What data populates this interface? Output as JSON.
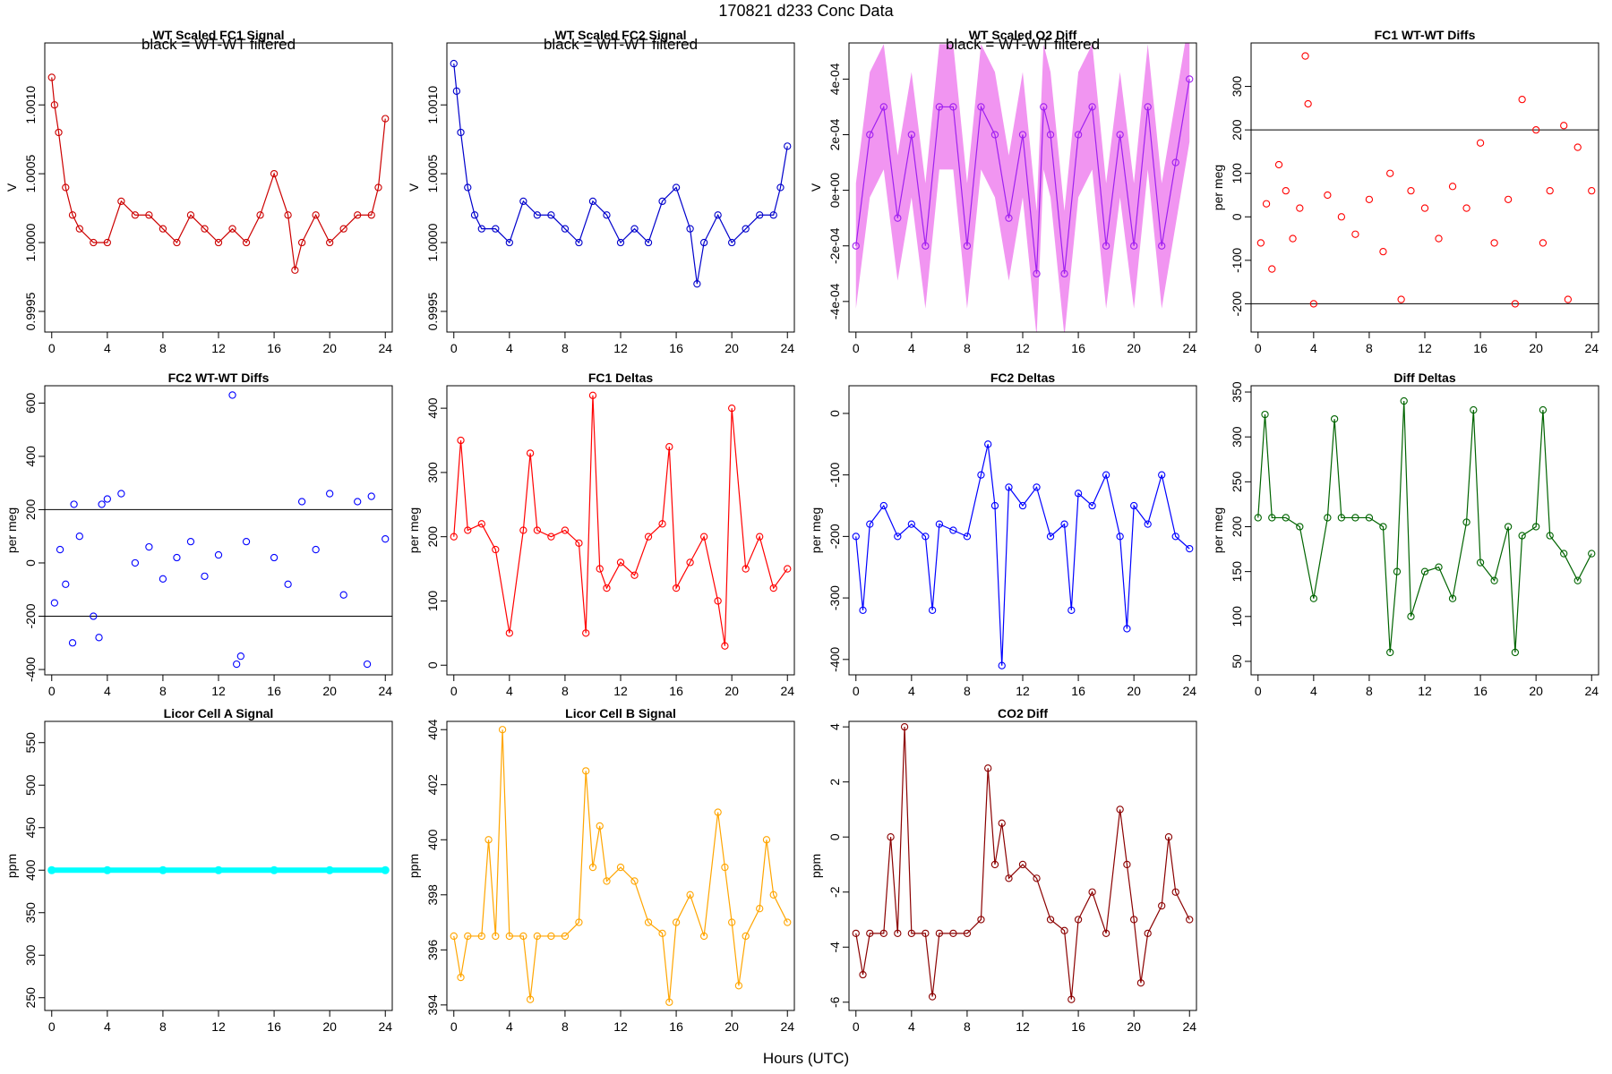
{
  "figure": {
    "title": "170821   d233   Conc Data",
    "xlabel": "Hours (UTC)"
  },
  "chart_data": [
    {
      "id": "fc1_signal",
      "type": "line",
      "title": "WT Scaled FC1 Signal",
      "note": "black = WT-WT filtered",
      "ylabel": "V",
      "xlim": [
        -0.5,
        24.5
      ],
      "ylim": [
        0.99935,
        1.00145
      ],
      "xticks": [
        0,
        4,
        8,
        12,
        16,
        20,
        24
      ],
      "yticks": [
        0.9995,
        1.0,
        1.0005,
        1.001
      ],
      "ytick_labels": [
        "0.9995",
        "1.0000",
        "1.0005",
        "1.0010"
      ],
      "color": "#cc0000",
      "marker": "circle",
      "series": [
        {
          "x": [
            0,
            0.2,
            0.5,
            1,
            1.5,
            2,
            3,
            4,
            5,
            6,
            7,
            8,
            9,
            10,
            11,
            12,
            13,
            14,
            15,
            16,
            17,
            17.5,
            18,
            19,
            20,
            21,
            22,
            23,
            23.5,
            24
          ],
          "y": [
            1.0012,
            1.001,
            1.0008,
            1.0004,
            1.0002,
            1.0001,
            1.0,
            1.0,
            1.0003,
            1.0002,
            1.0002,
            1.0001,
            1.0,
            1.0002,
            1.0001,
            1.0,
            1.0001,
            1.0,
            1.0002,
            1.0005,
            1.0002,
            0.9998,
            1.0,
            1.0002,
            1.0,
            1.0001,
            1.0002,
            1.0002,
            1.0004,
            1.0009
          ]
        }
      ]
    },
    {
      "id": "fc2_signal",
      "type": "line",
      "title": "WT Scaled FC2 Signal",
      "note": "black = WT-WT filtered",
      "ylabel": "V",
      "xlim": [
        -0.5,
        24.5
      ],
      "ylim": [
        0.99935,
        1.00145
      ],
      "xticks": [
        0,
        4,
        8,
        12,
        16,
        20,
        24
      ],
      "yticks": [
        0.9995,
        1.0,
        1.0005,
        1.001
      ],
      "ytick_labels": [
        "0.9995",
        "1.0000",
        "1.0005",
        "1.0010"
      ],
      "color": "#0000cc",
      "marker": "circle",
      "series": [
        {
          "x": [
            0,
            0.2,
            0.5,
            1,
            1.5,
            2,
            3,
            4,
            5,
            6,
            7,
            8,
            9,
            10,
            11,
            12,
            13,
            14,
            15,
            16,
            17,
            17.5,
            18,
            19,
            20,
            21,
            22,
            23,
            23.5,
            24
          ],
          "y": [
            1.0013,
            1.0011,
            1.0008,
            1.0004,
            1.0002,
            1.0001,
            1.0001,
            1.0,
            1.0003,
            1.0002,
            1.0002,
            1.0001,
            1.0,
            1.0003,
            1.0002,
            1.0,
            1.0001,
            1.0,
            1.0003,
            1.0004,
            1.0001,
            0.9997,
            1.0,
            1.0002,
            1.0,
            1.0001,
            1.0002,
            1.0002,
            1.0004,
            1.0007
          ]
        }
      ]
    },
    {
      "id": "o2_diff",
      "type": "line",
      "title": "WT Scaled O2 Diff",
      "note": "black = WT-WT filtered",
      "ylabel": "V",
      "xlim": [
        -0.5,
        24.5
      ],
      "ylim": [
        -0.00051,
        0.00053
      ],
      "xticks": [
        0,
        4,
        8,
        12,
        16,
        20,
        24
      ],
      "yticks": [
        -0.0004,
        -0.0002,
        0.0,
        0.0002,
        0.0004
      ],
      "ytick_labels": [
        "-4e-04",
        "-2e-04",
        "0e+00",
        "2e-04",
        "4e-04"
      ],
      "color": "#a020f0",
      "band_color": "#ee82ee",
      "marker": "circle",
      "series": [
        {
          "x": [
            0,
            1,
            2,
            3,
            4,
            5,
            6,
            7,
            8,
            9,
            10,
            11,
            12,
            13,
            13.5,
            14,
            15,
            16,
            17,
            18,
            19,
            20,
            21,
            22,
            23,
            24
          ],
          "y": [
            -0.0002,
            0.0002,
            0.0003,
            -0.0001,
            0.0002,
            -0.0002,
            0.0003,
            0.0003,
            -0.0002,
            0.0003,
            0.0002,
            -0.0001,
            0.0002,
            -0.0003,
            0.0003,
            0.0002,
            -0.0003,
            0.0002,
            0.0003,
            -0.0002,
            0.0002,
            -0.0002,
            0.0003,
            -0.0002,
            0.0001,
            0.0004
          ]
        }
      ]
    },
    {
      "id": "fc1_wtwt",
      "type": "scatter",
      "title": "FC1 WT-WT Diffs",
      "ylabel": "per meg",
      "xlim": [
        -0.5,
        24.5
      ],
      "ylim": [
        -265,
        400
      ],
      "xticks": [
        0,
        4,
        8,
        12,
        16,
        20,
        24
      ],
      "yticks": [
        -200,
        -100,
        0,
        100,
        200,
        300
      ],
      "ytick_labels": [
        "-200",
        "-100",
        "0",
        "100",
        "200",
        "300"
      ],
      "hlines": [
        200,
        -200
      ],
      "color": "#ff0000",
      "marker": "circle",
      "series": [
        {
          "x": [
            0.2,
            0.6,
            1.0,
            1.5,
            2.0,
            2.5,
            3.0,
            3.4,
            3.6,
            4.0,
            5.0,
            6.0,
            7.0,
            8.0,
            9.0,
            9.5,
            10.3,
            11.0,
            12.0,
            13.0,
            14.0,
            15.0,
            16.0,
            17.0,
            18.0,
            18.5,
            19.0,
            20.0,
            20.5,
            21.0,
            22.0,
            22.3,
            23.0,
            24.0
          ],
          "y": [
            -60,
            30,
            -120,
            120,
            60,
            -50,
            20,
            370,
            260,
            -200,
            50,
            0,
            -40,
            40,
            -80,
            100,
            -190,
            60,
            20,
            -50,
            70,
            20,
            170,
            -60,
            40,
            -200,
            270,
            200,
            -60,
            60,
            210,
            -190,
            160,
            60
          ]
        }
      ]
    },
    {
      "id": "fc2_wtwt",
      "type": "scatter",
      "title": "FC2 WT-WT Diffs",
      "ylabel": "per meg",
      "xlim": [
        -0.5,
        24.5
      ],
      "ylim": [
        -420,
        665
      ],
      "xticks": [
        0,
        4,
        8,
        12,
        16,
        20,
        24
      ],
      "yticks": [
        -400,
        -200,
        0,
        200,
        400,
        600
      ],
      "ytick_labels": [
        "-400",
        "-200",
        "0",
        "200",
        "400",
        "600"
      ],
      "hlines": [
        200,
        -200
      ],
      "color": "#0000ff",
      "marker": "circle",
      "series": [
        {
          "x": [
            0.2,
            0.6,
            1.0,
            1.5,
            1.6,
            2.0,
            3.0,
            3.4,
            3.6,
            4.0,
            5.0,
            6.0,
            7.0,
            8.0,
            9.0,
            10.0,
            11.0,
            12.0,
            13.0,
            13.3,
            13.6,
            14.0,
            16.0,
            17.0,
            18.0,
            19.0,
            20.0,
            21.0,
            22.0,
            22.7,
            23.0,
            24.0
          ],
          "y": [
            -150,
            50,
            -80,
            -300,
            220,
            100,
            -200,
            -280,
            220,
            240,
            260,
            0,
            60,
            -60,
            20,
            80,
            -50,
            30,
            630,
            -380,
            -350,
            80,
            20,
            -80,
            230,
            50,
            260,
            -120,
            230,
            -380,
            250,
            90
          ]
        }
      ]
    },
    {
      "id": "fc1_deltas",
      "type": "line",
      "title": "FC1 Deltas",
      "ylabel": "per meg",
      "xlim": [
        -0.5,
        24.5
      ],
      "ylim": [
        -15,
        435
      ],
      "xticks": [
        0,
        4,
        8,
        12,
        16,
        20,
        24
      ],
      "yticks": [
        0,
        100,
        200,
        300,
        400
      ],
      "ytick_labels": [
        "0",
        "100",
        "200",
        "300",
        "400"
      ],
      "color": "#ff0000",
      "marker": "circle",
      "series": [
        {
          "x": [
            0,
            0.5,
            1,
            2,
            3,
            4,
            5,
            5.5,
            6,
            7,
            8,
            9,
            9.5,
            10,
            10.5,
            11,
            12,
            13,
            14,
            15,
            15.5,
            16,
            17,
            18,
            19,
            19.5,
            20,
            21,
            22,
            23,
            24
          ],
          "y": [
            200,
            350,
            210,
            220,
            180,
            50,
            210,
            330,
            210,
            200,
            210,
            190,
            50,
            420,
            150,
            120,
            160,
            140,
            200,
            220,
            340,
            120,
            160,
            200,
            100,
            30,
            400,
            150,
            200,
            120,
            150
          ]
        }
      ]
    },
    {
      "id": "fc2_deltas",
      "type": "line",
      "title": "FC2 Deltas",
      "ylabel": "per meg",
      "xlim": [
        -0.5,
        24.5
      ],
      "ylim": [
        -425,
        45
      ],
      "xticks": [
        0,
        4,
        8,
        12,
        16,
        20,
        24
      ],
      "yticks": [
        -400,
        -300,
        -200,
        -100,
        0
      ],
      "ytick_labels": [
        "-400",
        "-300",
        "-200",
        "-100",
        "0"
      ],
      "color": "#0000ff",
      "marker": "circle",
      "series": [
        {
          "x": [
            0,
            0.5,
            1,
            2,
            3,
            4,
            5,
            5.5,
            6,
            7,
            8,
            9,
            9.5,
            10,
            10.5,
            11,
            12,
            13,
            14,
            15,
            15.5,
            16,
            17,
            18,
            19,
            19.5,
            20,
            21,
            22,
            23,
            24
          ],
          "y": [
            -200,
            -320,
            -180,
            -150,
            -200,
            -180,
            -200,
            -320,
            -180,
            -190,
            -200,
            -100,
            -50,
            -150,
            -410,
            -120,
            -150,
            -120,
            -200,
            -180,
            -320,
            -130,
            -150,
            -100,
            -200,
            -350,
            -150,
            -180,
            -100,
            -200,
            -220
          ]
        }
      ]
    },
    {
      "id": "diff_deltas",
      "type": "line",
      "title": "Diff Deltas",
      "ylabel": "per meg",
      "xlim": [
        -0.5,
        24.5
      ],
      "ylim": [
        35,
        357
      ],
      "xticks": [
        0,
        4,
        8,
        12,
        16,
        20,
        24
      ],
      "yticks": [
        50,
        100,
        150,
        200,
        250,
        300,
        350
      ],
      "ytick_labels": [
        "50",
        "100",
        "150",
        "200",
        "250",
        "300",
        "350"
      ],
      "color": "#006400",
      "marker": "circle",
      "series": [
        {
          "x": [
            0,
            0.5,
            1,
            2,
            3,
            4,
            5,
            5.5,
            6,
            7,
            8,
            9,
            9.5,
            10,
            10.5,
            11,
            12,
            13,
            14,
            15,
            15.5,
            16,
            17,
            18,
            18.5,
            19,
            20,
            20.5,
            21,
            22,
            23,
            24
          ],
          "y": [
            210,
            325,
            210,
            210,
            200,
            120,
            210,
            320,
            210,
            210,
            210,
            200,
            60,
            150,
            340,
            100,
            150,
            155,
            120,
            205,
            330,
            160,
            140,
            200,
            60,
            190,
            200,
            330,
            190,
            170,
            140,
            170
          ]
        }
      ]
    },
    {
      "id": "licor_a",
      "type": "line",
      "title": "Licor Cell A Signal",
      "ylabel": "ppm",
      "xlim": [
        -0.5,
        24.5
      ],
      "ylim": [
        235,
        575
      ],
      "xticks": [
        0,
        4,
        8,
        12,
        16,
        20,
        24
      ],
      "yticks": [
        250,
        300,
        350,
        400,
        450,
        500,
        550
      ],
      "ytick_labels": [
        "250",
        "300",
        "350",
        "400",
        "450",
        "500",
        "550"
      ],
      "color": "#00ffff",
      "marker": "circle",
      "series": [
        {
          "x": [
            0,
            4,
            8,
            12,
            16,
            20,
            24
          ],
          "y": [
            400,
            400,
            400,
            400,
            400,
            400,
            400
          ]
        }
      ]
    },
    {
      "id": "licor_b",
      "type": "line",
      "title": "Licor Cell B Signal",
      "ylabel": "ppm",
      "xlim": [
        -0.5,
        24.5
      ],
      "ylim": [
        393.8,
        404.3
      ],
      "xticks": [
        0,
        4,
        8,
        12,
        16,
        20,
        24
      ],
      "yticks": [
        394,
        396,
        398,
        400,
        402,
        404
      ],
      "ytick_labels": [
        "394",
        "396",
        "398",
        "400",
        "402",
        "404"
      ],
      "color": "#ffa500",
      "marker": "circle",
      "series": [
        {
          "x": [
            0,
            0.5,
            1,
            2,
            2.5,
            3,
            3.5,
            4,
            5,
            5.5,
            6,
            7,
            8,
            9,
            9.5,
            10,
            10.5,
            11,
            12,
            13,
            14,
            15,
            15.5,
            16,
            17,
            18,
            19,
            19.5,
            20,
            20.5,
            21,
            22,
            22.5,
            23,
            24
          ],
          "y": [
            396.5,
            395.0,
            396.5,
            396.5,
            400.0,
            396.5,
            404.0,
            396.5,
            396.5,
            394.2,
            396.5,
            396.5,
            396.5,
            397.0,
            402.5,
            399.0,
            400.5,
            398.5,
            399.0,
            398.5,
            397.0,
            396.6,
            394.1,
            397.0,
            398.0,
            396.5,
            401.0,
            399.0,
            397.0,
            394.7,
            396.5,
            397.5,
            400.0,
            398.0,
            397.0
          ]
        }
      ]
    },
    {
      "id": "co2_diff",
      "type": "line",
      "title": "CO2 Diff",
      "ylabel": "ppm",
      "xlim": [
        -0.5,
        24.5
      ],
      "ylim": [
        -6.3,
        4.2
      ],
      "xticks": [
        0,
        4,
        8,
        12,
        16,
        20,
        24
      ],
      "yticks": [
        -6,
        -4,
        -2,
        0,
        2,
        4
      ],
      "ytick_labels": [
        "-6",
        "-4",
        "-2",
        "0",
        "2",
        "4"
      ],
      "color": "#8b0000",
      "marker": "circle",
      "series": [
        {
          "x": [
            0,
            0.5,
            1,
            2,
            2.5,
            3,
            3.5,
            4,
            5,
            5.5,
            6,
            7,
            8,
            9,
            9.5,
            10,
            10.5,
            11,
            12,
            13,
            14,
            15,
            15.5,
            16,
            17,
            18,
            19,
            19.5,
            20,
            20.5,
            21,
            22,
            22.5,
            23,
            24
          ],
          "y": [
            -3.5,
            -5.0,
            -3.5,
            -3.5,
            0.0,
            -3.5,
            4.0,
            -3.5,
            -3.5,
            -5.8,
            -3.5,
            -3.5,
            -3.5,
            -3.0,
            2.5,
            -1.0,
            0.5,
            -1.5,
            -1.0,
            -1.5,
            -3.0,
            -3.4,
            -5.9,
            -3.0,
            -2.0,
            -3.5,
            1.0,
            -1.0,
            -3.0,
            -5.3,
            -3.5,
            -2.5,
            0.0,
            -2.0,
            -3.0
          ]
        }
      ]
    }
  ]
}
